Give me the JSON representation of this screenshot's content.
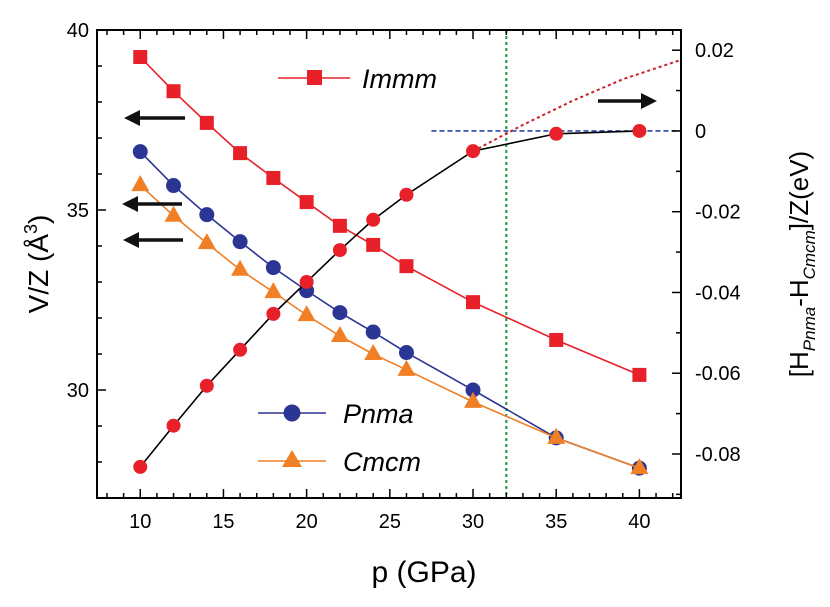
{
  "chart_data": {
    "type": "line",
    "xlabel": "p (GPa)",
    "ylabel_left": "V/Z (Å",
    "ylabel_left_sup": "3",
    "ylabel_left_end": ")",
    "ylabel_right": {
      "open": "[H",
      "sub1": "Pnma",
      "mid": "-H",
      "sub2": "Cmcm",
      "close": "]/Z(eV)"
    },
    "xlim": [
      7.4,
      42.5
    ],
    "ylim_left": [
      27,
      40
    ],
    "ylim_right": [
      -0.0909,
      0.025
    ],
    "x_ticks": [
      "10",
      "15",
      "20",
      "25",
      "30",
      "35",
      "40"
    ],
    "y_left_ticks": [
      "30",
      "35",
      "40"
    ],
    "y_right_ticks": [
      "0.02",
      "0",
      "-0.02",
      "-0.04",
      "-0.06",
      "-0.08"
    ],
    "grid": false,
    "series": [
      {
        "name": "Immm",
        "axis": "left",
        "marker": "square",
        "color": "#e8202a",
        "x": [
          10,
          12,
          14,
          16,
          18,
          20,
          22,
          24,
          26,
          30,
          35,
          40
        ],
        "y": [
          39.25,
          38.3,
          37.42,
          36.58,
          35.89,
          35.22,
          34.56,
          34.03,
          33.44,
          32.44,
          31.39,
          30.42
        ]
      },
      {
        "name": "Pnma",
        "axis": "left",
        "marker": "circle",
        "color": "#2b3593",
        "x": [
          10,
          12,
          14,
          16,
          18,
          20,
          22,
          24,
          26,
          30,
          35,
          40
        ],
        "y": [
          36.62,
          35.68,
          34.87,
          34.12,
          33.4,
          32.76,
          32.15,
          31.61,
          31.04,
          30.0,
          28.67,
          27.83
        ]
      },
      {
        "name": "Cmcm",
        "axis": "left",
        "marker": "triangle",
        "color": "#f07f25",
        "x": [
          10,
          12,
          14,
          16,
          18,
          20,
          22,
          24,
          26,
          30,
          35,
          40
        ],
        "y": [
          35.69,
          34.84,
          34.08,
          33.34,
          32.72,
          32.08,
          31.5,
          31.0,
          30.56,
          29.67,
          28.67,
          27.83
        ]
      },
      {
        "axis": "right",
        "marker": "circle",
        "color": "#e8202a",
        "line_color": "#000000",
        "x": [
          10,
          12,
          14,
          16,
          18,
          20,
          22,
          24,
          26,
          30,
          35,
          40
        ],
        "y": [
          -0.0832,
          -0.073,
          -0.0631,
          -0.0542,
          -0.0453,
          -0.0374,
          -0.0295,
          -0.022,
          -0.0158,
          -0.005,
          -0.0007,
          0.0
        ]
      }
    ],
    "annotations": {
      "red_dotted_extrapolation": {
        "axis": "right",
        "color": "#c8202a",
        "x": [
          30,
          33,
          36,
          39,
          42.5
        ],
        "y": [
          -0.005,
          0.0015,
          0.0075,
          0.0128,
          0.0176
        ]
      },
      "blue_dashed_zero": {
        "axis": "right",
        "color": "#2b45b0",
        "x": [
          27.5,
          42.5
        ],
        "y": [
          0,
          0
        ]
      },
      "green_dotted_transition": {
        "color": "#1a9a3a",
        "x": 32
      },
      "arrows": [
        {
          "direction": "left",
          "points_to": "left-axis"
        },
        {
          "direction": "left",
          "points_to": "left-axis"
        },
        {
          "direction": "left",
          "points_to": "left-axis"
        },
        {
          "direction": "right",
          "points_to": "right-axis"
        }
      ]
    },
    "legend": [
      {
        "label": "Immm",
        "placement": "top-center"
      },
      {
        "label": "Pnma",
        "placement": "bottom-center"
      },
      {
        "label": "Cmcm",
        "placement": "bottom-center"
      }
    ]
  }
}
